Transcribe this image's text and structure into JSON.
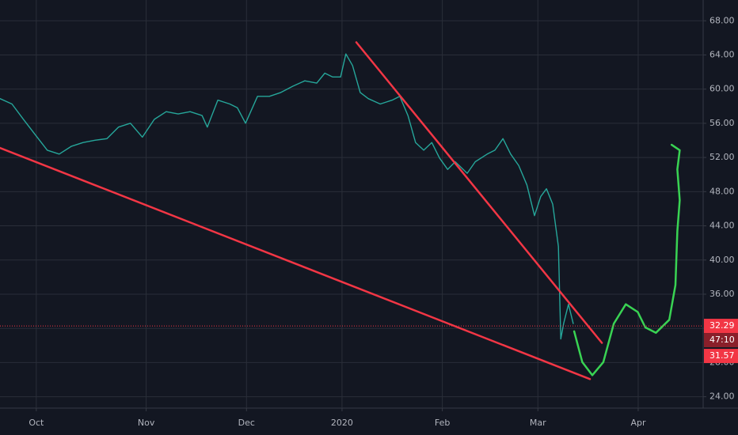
{
  "chart_data": {
    "type": "line",
    "xlim": [
      -7.6,
      139.6
    ],
    "xticks": [
      {
        "value": 0,
        "label": "Oct"
      },
      {
        "value": 23,
        "label": "Nov"
      },
      {
        "value": 44,
        "label": "Dec"
      },
      {
        "value": 64,
        "label": "2020"
      },
      {
        "value": 85,
        "label": "Feb"
      },
      {
        "value": 105,
        "label": "Mar"
      },
      {
        "value": 126,
        "label": "Apr"
      }
    ],
    "ylim": [
      22.67,
      70.43
    ],
    "yticks": [
      {
        "value": 24,
        "label": "24.00"
      },
      {
        "value": 28,
        "label": "28.00"
      },
      {
        "value": 32,
        "label": "32.00"
      },
      {
        "value": 36,
        "label": "36.00"
      },
      {
        "value": 40,
        "label": "40.00"
      },
      {
        "value": 44,
        "label": "44.00"
      },
      {
        "value": 48,
        "label": "48.00"
      },
      {
        "value": 52,
        "label": "52.00"
      },
      {
        "value": 56,
        "label": "56.00"
      },
      {
        "value": 60,
        "label": "60.00"
      },
      {
        "value": 64,
        "label": "64.00"
      },
      {
        "value": 68,
        "label": "68.00"
      }
    ],
    "grid": true,
    "series": [
      {
        "color": "#26a69a",
        "x": [
          -7.6,
          -5.1,
          -2.7,
          -0.2,
          2.3,
          4.8,
          7.3,
          9.8,
          12.3,
          14.8,
          17.2,
          19.7,
          22.2,
          24.7,
          27.2,
          29.7,
          32.2,
          34.7,
          35.8,
          38.0,
          40.5,
          42.1,
          43.8,
          46.3,
          48.8,
          51.2,
          53.7,
          56.2,
          58.7,
          60.4,
          62.0,
          63.7,
          64.8,
          66.2,
          67.8,
          69.5,
          72.0,
          74.5,
          76.1,
          77.8,
          79.4,
          81.1,
          82.8,
          84.4,
          86.1,
          87.7,
          90.2,
          91.9,
          94.4,
          96.0,
          97.7,
          99.3,
          101.0,
          102.7,
          104.3,
          105.6,
          106.8,
          108.1,
          109.3,
          109.8,
          110.4,
          111.4,
          112.4
        ],
        "values": [
          58.89,
          58.26,
          56.46,
          54.66,
          52.85,
          52.4,
          53.3,
          53.75,
          54.02,
          54.2,
          55.56,
          56.01,
          54.38,
          56.46,
          57.36,
          57.09,
          57.36,
          56.91,
          55.56,
          58.71,
          58.26,
          57.81,
          56.01,
          59.16,
          59.16,
          59.61,
          60.34,
          60.97,
          60.7,
          61.87,
          61.42,
          61.42,
          64.12,
          62.77,
          59.61,
          58.89,
          58.26,
          58.71,
          59.16,
          56.91,
          53.75,
          52.85,
          53.75,
          51.95,
          50.6,
          51.5,
          50.15,
          51.5,
          52.4,
          52.85,
          54.2,
          52.4,
          51.05,
          48.79,
          45.19,
          47.44,
          48.34,
          46.54,
          41.58,
          30.76,
          32.56,
          34.82,
          32.56
        ]
      }
    ],
    "drawings": [
      {
        "color": "#f23645",
        "x": [
          -7.6,
          115.9
        ],
        "values": [
          53.12,
          26.07
        ]
      },
      {
        "color": "#f23645",
        "x": [
          67.0,
          118.4
        ],
        "values": [
          65.48,
          30.31
        ]
      },
      {
        "color": "#39d353",
        "x": [
          112.6,
          114.3,
          116.4,
          118.7,
          120.9,
          123.4,
          125.9,
          127.5,
          129.7,
          132.5,
          133.8,
          134.2,
          134.7,
          134.2,
          134.7,
          133.0
        ],
        "values": [
          31.66,
          28.05,
          26.52,
          28.05,
          32.56,
          34.82,
          33.92,
          32.11,
          31.48,
          33.01,
          37.07,
          43.38,
          46.99,
          50.6,
          52.85,
          53.48
        ]
      }
    ],
    "last_price": {
      "value": 32.29,
      "label": "32.29",
      "color": "#f23645"
    },
    "countdown": "47:10",
    "low_price": {
      "value": 31.57,
      "label": "31.57"
    }
  }
}
